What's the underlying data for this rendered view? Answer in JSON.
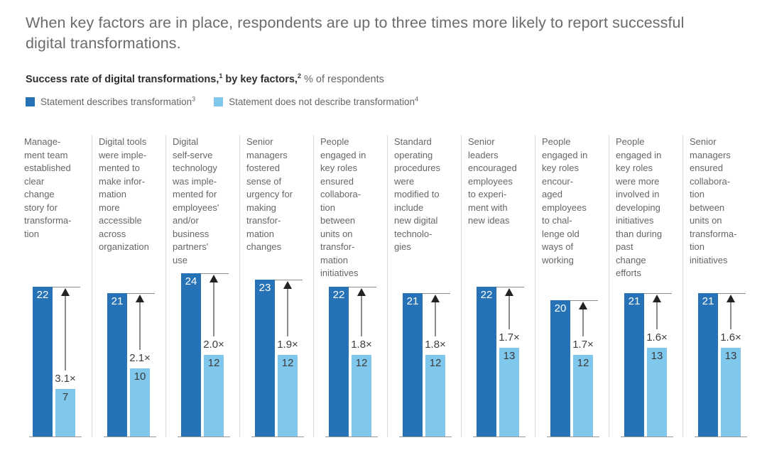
{
  "title": "When key factors are in place, respondents are up to three times more likely to report successful digital transformations.",
  "subtitle": {
    "part1": "Success rate of digital transformations,",
    "sup1": "1",
    "part2": " by key factors,",
    "sup2": "2",
    "part3": " % of respondents"
  },
  "legend": [
    {
      "label": "Statement describes transformation",
      "sup": "3",
      "color": "#2672b6"
    },
    {
      "label": "Statement does not describe transformation",
      "sup": "4",
      "color": "#7fc8eb"
    }
  ],
  "colors": {
    "dark_bar": "#2672b6",
    "light_bar": "#7fc8eb",
    "divider": "#d9d9d9",
    "baseline": "#9a9a9a",
    "arrow": "#8c8c8c",
    "arrowhead": "#222222"
  },
  "columns": [
    {
      "label_lines": [
        "Manage-",
        "ment team",
        "established",
        "clear",
        "change",
        "story for",
        "transforma-",
        "tion"
      ],
      "dark": 22,
      "light": 7,
      "multiplier": "3.1×"
    },
    {
      "label_lines": [
        "Digital tools",
        "were imple-",
        "mented to",
        "make infor-",
        "mation",
        "more",
        "accessible",
        "across",
        "organization"
      ],
      "dark": 21,
      "light": 10,
      "multiplier": "2.1×"
    },
    {
      "label_lines": [
        "Digital",
        "self-serve",
        "technology",
        "was imple-",
        "mented for",
        "employees'",
        "and/or",
        "business",
        "partners'",
        "use"
      ],
      "dark": 24,
      "light": 12,
      "multiplier": "2.0×"
    },
    {
      "label_lines": [
        "Senior",
        "managers",
        "fostered",
        "sense of",
        "urgency for",
        "making",
        "transfor-",
        "mation",
        "changes"
      ],
      "dark": 23,
      "light": 12,
      "multiplier": "1.9×"
    },
    {
      "label_lines": [
        "People",
        "engaged in",
        "key roles",
        "ensured",
        "collabora-",
        "tion",
        "between",
        "units on",
        "transfor-",
        "mation",
        "initiatives"
      ],
      "dark": 22,
      "light": 12,
      "multiplier": "1.8×"
    },
    {
      "label_lines": [
        "Standard",
        "operating",
        "procedures",
        "were",
        "modified to",
        "include",
        "new digital",
        "technolo-",
        "gies"
      ],
      "dark": 21,
      "light": 12,
      "multiplier": "1.8×"
    },
    {
      "label_lines": [
        "Senior",
        "leaders",
        "encouraged",
        "employees",
        "to experi-",
        "ment with",
        "new ideas"
      ],
      "dark": 22,
      "light": 13,
      "multiplier": "1.7×"
    },
    {
      "label_lines": [
        "People",
        "engaged in",
        "key roles",
        "encour-",
        "aged",
        "employees",
        "to chal-",
        "lenge old",
        "ways of",
        "working"
      ],
      "dark": 20,
      "light": 12,
      "multiplier": "1.7×"
    },
    {
      "label_lines": [
        "People",
        "engaged in",
        "key roles",
        "were more",
        "involved in",
        "developing",
        "initiatives",
        "than during",
        "past",
        "change",
        "efforts"
      ],
      "dark": 21,
      "light": 13,
      "multiplier": "1.6×"
    },
    {
      "label_lines": [
        "Senior",
        "managers",
        "ensured",
        "collabora-",
        "tion",
        "between",
        "units on",
        "transforma-",
        "tion",
        "initiatives"
      ],
      "dark": 21,
      "light": 13,
      "multiplier": "1.6×"
    }
  ],
  "chart_data": {
    "type": "bar",
    "title": "Success rate of digital transformations, by key factors, % of respondents",
    "categories": [
      "Management team established clear change story for transformation",
      "Digital tools were implemented to make information more accessible across organization",
      "Digital self-serve technology was implemented for employees' and/or business partners' use",
      "Senior managers fostered sense of urgency for making transformation changes",
      "People engaged in key roles ensured collaboration between units on transformation initiatives",
      "Standard operating procedures were modified to include new digital technologies",
      "Senior leaders encouraged employees to experiment with new ideas",
      "People engaged in key roles encouraged employees to challenge old ways of working",
      "People engaged in key roles were more involved in developing initiatives than during past change efforts",
      "Senior managers ensured collaboration between units on transformation initiatives"
    ],
    "series": [
      {
        "name": "Statement describes transformation",
        "values": [
          22,
          21,
          24,
          23,
          22,
          21,
          22,
          20,
          21,
          21
        ]
      },
      {
        "name": "Statement does not describe transformation",
        "values": [
          7,
          10,
          12,
          12,
          12,
          12,
          13,
          12,
          13,
          13
        ]
      }
    ],
    "annotations": [
      "3.1×",
      "2.1×",
      "2.0×",
      "1.9×",
      "1.8×",
      "1.8×",
      "1.7×",
      "1.7×",
      "1.6×",
      "1.6×"
    ],
    "ylim": [
      0,
      24
    ],
    "grid": false,
    "legend_position": "top",
    "unit": "% of respondents"
  }
}
